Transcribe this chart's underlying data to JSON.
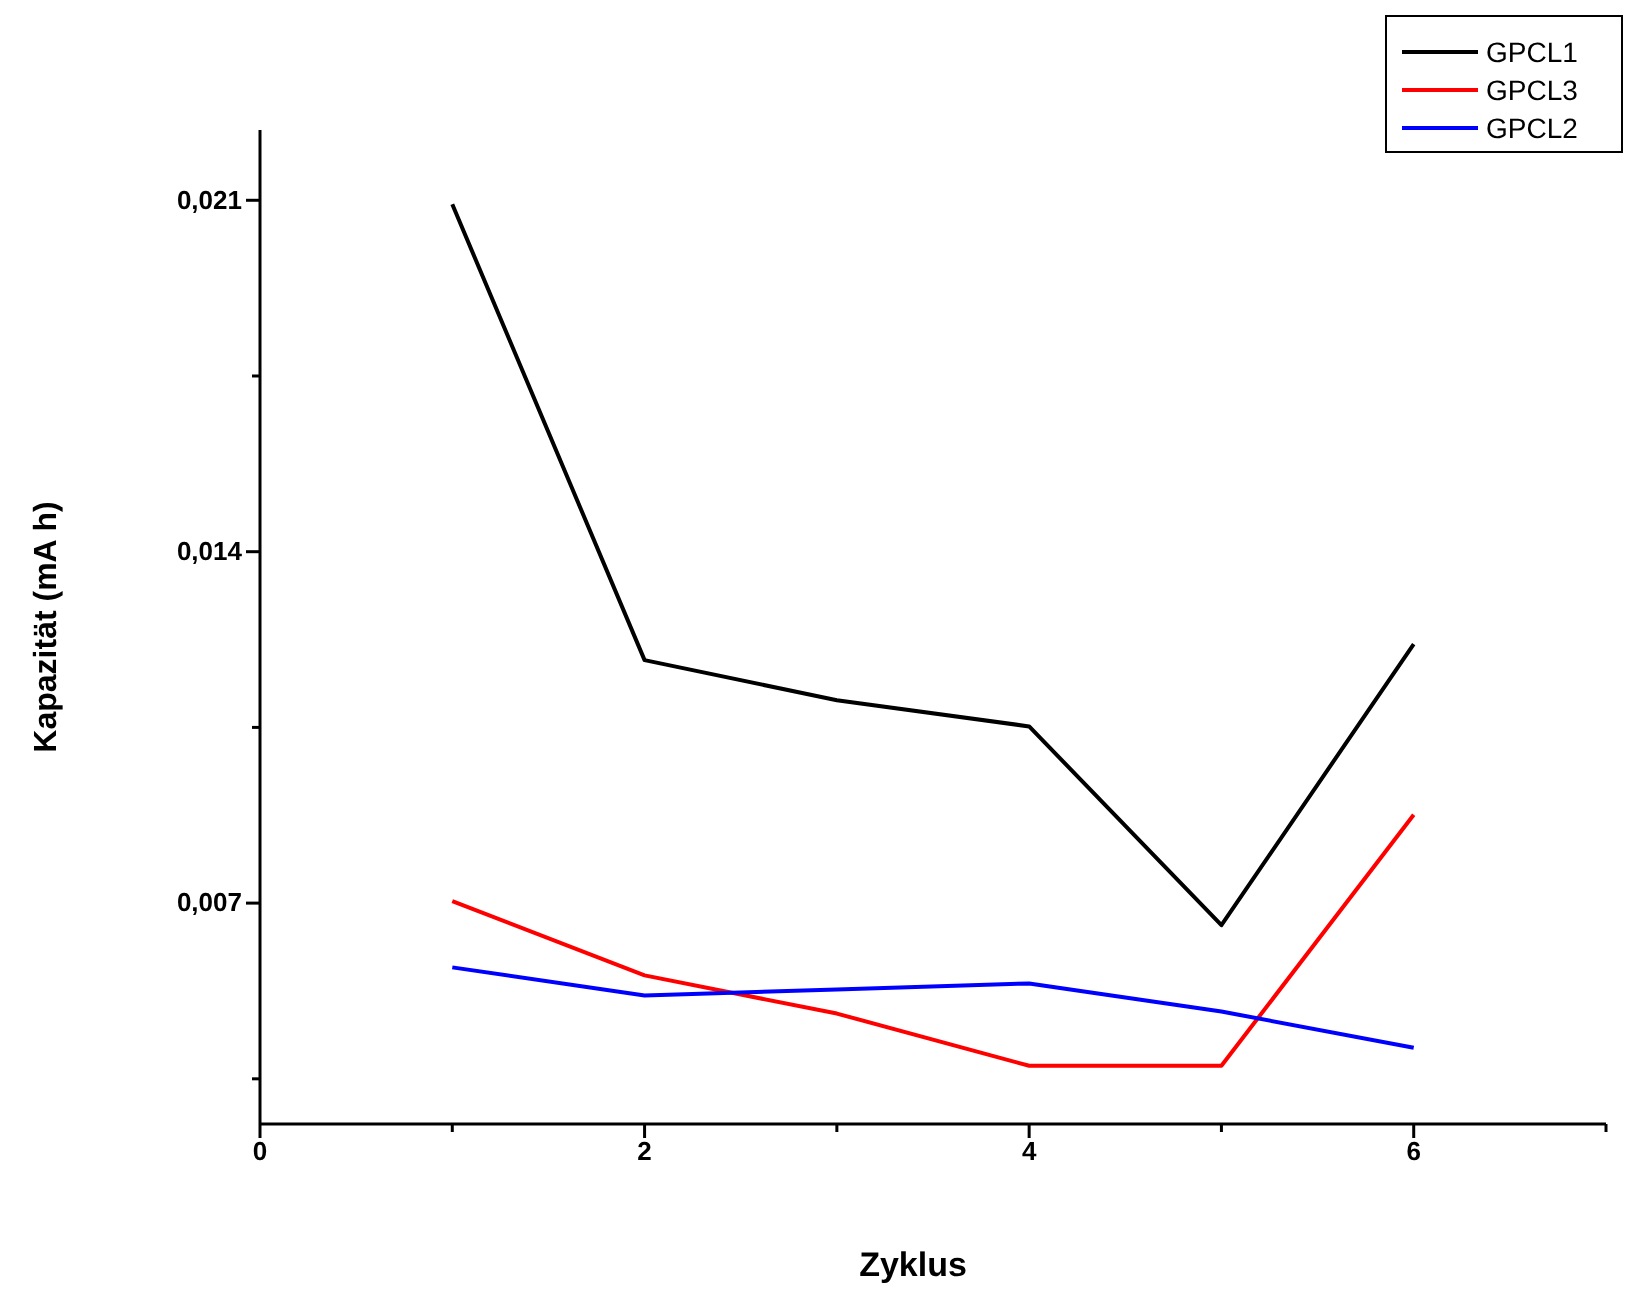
{
  "chart_data": {
    "type": "line",
    "xlabel": "Zyklus",
    "ylabel": "Kapazität (mA h)",
    "x": [
      1,
      2,
      3,
      4,
      5,
      6
    ],
    "series": [
      {
        "name": "GPCL1",
        "color": "#000000",
        "values": [
          0.02092,
          0.01184,
          0.01104,
          0.01052,
          0.00656,
          0.01216
        ]
      },
      {
        "name": "GPCL3",
        "color": "#ff0000",
        "values": [
          0.00704,
          0.00556,
          0.0048,
          0.00376,
          0.00376,
          0.00876
        ]
      },
      {
        "name": "GPCL2",
        "color": "#0000ff",
        "values": [
          0.00572,
          0.00516,
          0.00528,
          0.0054,
          0.00484,
          0.00412
        ]
      }
    ],
    "xlim": [
      0,
      7
    ],
    "xticks": [
      0,
      {
        "value": 1,
        "label": null
      },
      2,
      {
        "value": 3,
        "label": null
      },
      4,
      {
        "value": 5,
        "label": null
      },
      6,
      {
        "value": 7,
        "label": null
      }
    ],
    "ylim": [
      0.0026,
      0.0224
    ],
    "yticks": [
      {
        "value": 0.0035,
        "label": null
      },
      {
        "value": 0.007,
        "label": "0,007"
      },
      {
        "value": 0.0105,
        "label": null
      },
      {
        "value": 0.014,
        "label": "0,014"
      },
      {
        "value": 0.0175,
        "label": null
      },
      {
        "value": 0.021,
        "label": "0,021"
      }
    ],
    "legend": "top right",
    "grid": false,
    "marker": "none",
    "line_style": "solid"
  }
}
